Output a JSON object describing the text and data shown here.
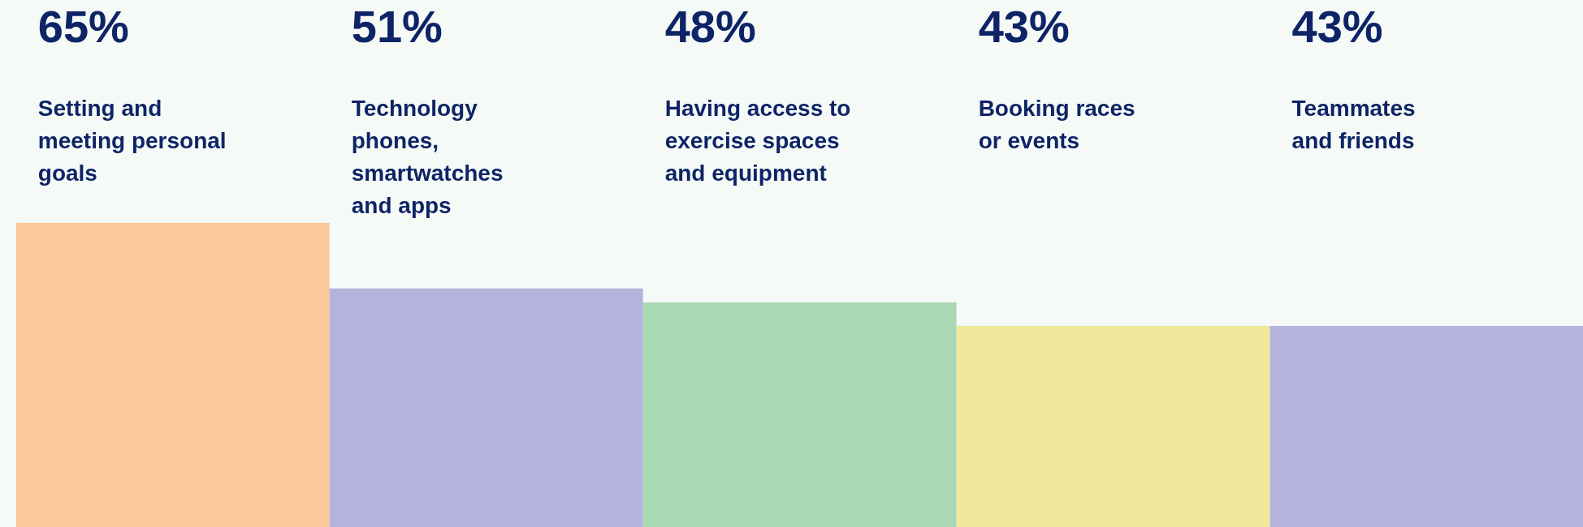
{
  "chart_data": {
    "type": "bar",
    "categories": [
      "Setting and\nmeeting personal\ngoals",
      "Technology\nphones,\nsmartwatches\nand apps",
      "Having access to\nexercise spaces\nand equipment",
      "Booking races\nor events",
      "Teammates\nand friends"
    ],
    "values": [
      65,
      51,
      48,
      43,
      43
    ],
    "colors": [
      "#fbc89a",
      "#b3b3dc",
      "#a8d8b4",
      "#f0e89a",
      "#b3b3dc"
    ],
    "value_labels": [
      "65%",
      "51%",
      "48%",
      "43%",
      "43%"
    ],
    "grid": false
  }
}
